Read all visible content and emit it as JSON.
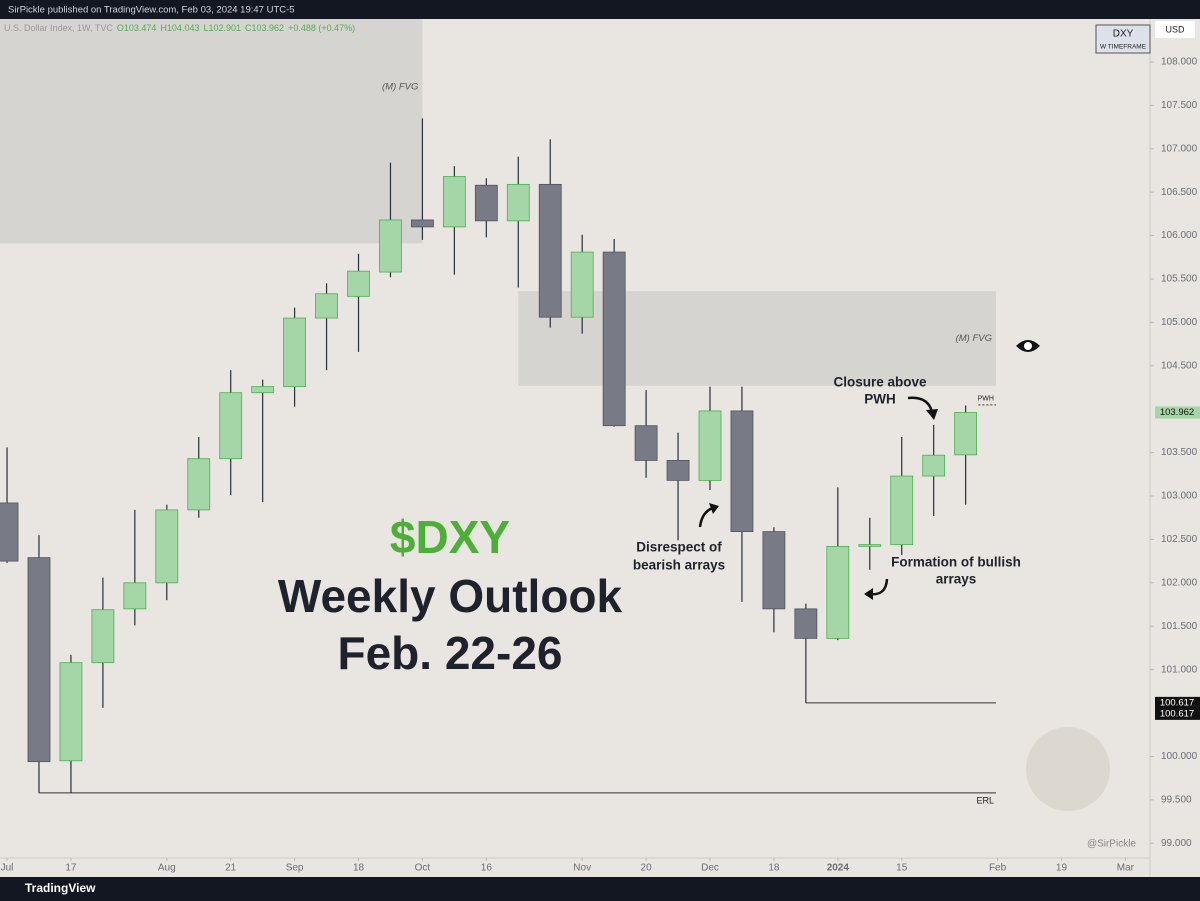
{
  "header": {
    "publisher": "SirPickle published on TradingView.com, Feb 03, 2024 19:47 UTC-5",
    "footer": "TradingView",
    "watermark": "@SirPickle"
  },
  "chart_data": {
    "type": "candlestick",
    "symbol": "U.S. Dollar Index, 1W, TVC",
    "ohlc_text": [
      "O103.474",
      "H104.043",
      "L102.901",
      "C103.962"
    ],
    "change_text": "+0.488 (+0.47%)",
    "symbol_box": [
      "DXY",
      "W TIMEFRAME"
    ],
    "currency": "USD",
    "up_color": "#a5d6a7",
    "up_edge": "#4caf50",
    "down_color": "#787b86",
    "down_edge": "#50535e",
    "categories": [
      null,
      null,
      null,
      null,
      null,
      null,
      null,
      null,
      null,
      null,
      null,
      null,
      null,
      null,
      null,
      null,
      null,
      null,
      null,
      null,
      null,
      null,
      null,
      null,
      null,
      null,
      null,
      null,
      null,
      null,
      null
    ],
    "open": [
      102.92,
      102.29,
      99.95,
      101.08,
      101.7,
      102.0,
      102.84,
      103.43,
      104.19,
      104.26,
      105.05,
      105.3,
      105.58,
      106.18,
      106.1,
      106.58,
      106.17,
      106.59,
      105.06,
      105.81,
      103.81,
      103.41,
      103.18,
      103.98,
      102.59,
      101.7,
      101.36,
      102.42,
      102.44,
      103.23,
      103.474
    ],
    "high": [
      103.56,
      102.55,
      101.17,
      102.06,
      102.84,
      102.9,
      103.68,
      104.45,
      104.34,
      105.17,
      105.45,
      105.79,
      106.84,
      107.35,
      106.8,
      106.66,
      106.91,
      107.11,
      106.01,
      105.96,
      104.22,
      103.73,
      104.26,
      104.26,
      102.64,
      101.76,
      103.1,
      102.75,
      103.68,
      103.82,
      104.043
    ],
    "low": [
      102.23,
      99.58,
      99.58,
      100.56,
      101.51,
      101.8,
      102.75,
      103.01,
      102.93,
      104.03,
      104.45,
      104.66,
      105.52,
      105.95,
      105.55,
      105.98,
      105.4,
      104.94,
      104.87,
      103.8,
      103.21,
      102.49,
      103.07,
      101.78,
      101.43,
      100.617,
      101.34,
      102.15,
      102.32,
      102.77,
      102.901
    ],
    "close": [
      102.25,
      99.94,
      101.08,
      101.69,
      102.0,
      102.84,
      103.43,
      104.19,
      104.26,
      105.05,
      105.33,
      105.59,
      106.18,
      106.1,
      106.68,
      106.17,
      106.59,
      105.06,
      105.81,
      103.81,
      103.41,
      103.18,
      103.98,
      102.59,
      101.7,
      101.36,
      102.42,
      102.44,
      103.23,
      103.47,
      103.962
    ],
    "xlim": [
      -0.22,
      35.77
    ],
    "xticks": [
      {
        "value": 0,
        "label": "Jul"
      },
      {
        "value": 2,
        "label": "17"
      },
      {
        "value": 5,
        "label": "Aug"
      },
      {
        "value": 7,
        "label": "21"
      },
      {
        "value": 9,
        "label": "Sep"
      },
      {
        "value": 11,
        "label": "18"
      },
      {
        "value": 13,
        "label": "Oct"
      },
      {
        "value": 15,
        "label": "16"
      },
      {
        "value": 18,
        "label": "Nov"
      },
      {
        "value": 20,
        "label": "20"
      },
      {
        "value": 22,
        "label": "Dec"
      },
      {
        "value": 24,
        "label": "18"
      },
      {
        "value": 26,
        "label": "2024"
      },
      {
        "value": 28,
        "label": "15"
      },
      {
        "value": 31,
        "label": "Feb"
      },
      {
        "value": 33,
        "label": "19"
      },
      {
        "value": 35,
        "label": "Mar"
      }
    ],
    "ylim": [
      98.83,
      108.495
    ],
    "yticks": [
      {
        "value": 99,
        "label": "99.000"
      },
      {
        "value": 99.5,
        "label": "99.500"
      },
      {
        "value": 100,
        "label": "100.000"
      },
      {
        "value": 101,
        "label": "101.000"
      },
      {
        "value": 101.5,
        "label": "101.500"
      },
      {
        "value": 102,
        "label": "102.000"
      },
      {
        "value": 102.5,
        "label": "102.500"
      },
      {
        "value": 103,
        "label": "103.000"
      },
      {
        "value": 103.5,
        "label": "103.500"
      },
      {
        "value": 104.5,
        "label": "104.500"
      },
      {
        "value": 105,
        "label": "105.000"
      },
      {
        "value": 105.5,
        "label": "105.500"
      },
      {
        "value": 106,
        "label": "106.000"
      },
      {
        "value": 106.5,
        "label": "106.500"
      },
      {
        "value": 107,
        "label": "107.000"
      },
      {
        "value": 107.5,
        "label": "107.500"
      },
      {
        "value": 108,
        "label": "108.000"
      }
    ],
    "price_labels": [
      {
        "value": 103.962,
        "label": "103.962"
      },
      {
        "value": 100.617,
        "label": "100.617"
      },
      {
        "value": 100.617,
        "label": "100.617"
      }
    ],
    "zones": [
      {
        "label": "(M) FVG",
        "x": [
          -0.22,
          13
        ],
        "y": [
          105.91,
          108.495
        ]
      },
      {
        "label": "(M) FVG",
        "x": [
          16,
          30.95
        ],
        "y": [
          104.27,
          105.36
        ]
      }
    ],
    "levels": [
      {
        "value": 100.617,
        "x": [
          25,
          30.95
        ]
      },
      {
        "value": 99.58,
        "x": [
          1,
          30.95
        ],
        "label": "ERL"
      },
      {
        "value": 104.05,
        "x": [
          30.4,
          30.95
        ],
        "label": "PWH"
      }
    ],
    "annotations": {
      "ticker": "$DXY",
      "title": "Weekly Outlook",
      "dates": "Feb. 22-26",
      "note1": [
        "Disrespect of",
        "bearish arrays"
      ],
      "note2": [
        "Closure above",
        "PWH"
      ],
      "note3": [
        "Formation of bullish",
        "arrays"
      ]
    }
  }
}
